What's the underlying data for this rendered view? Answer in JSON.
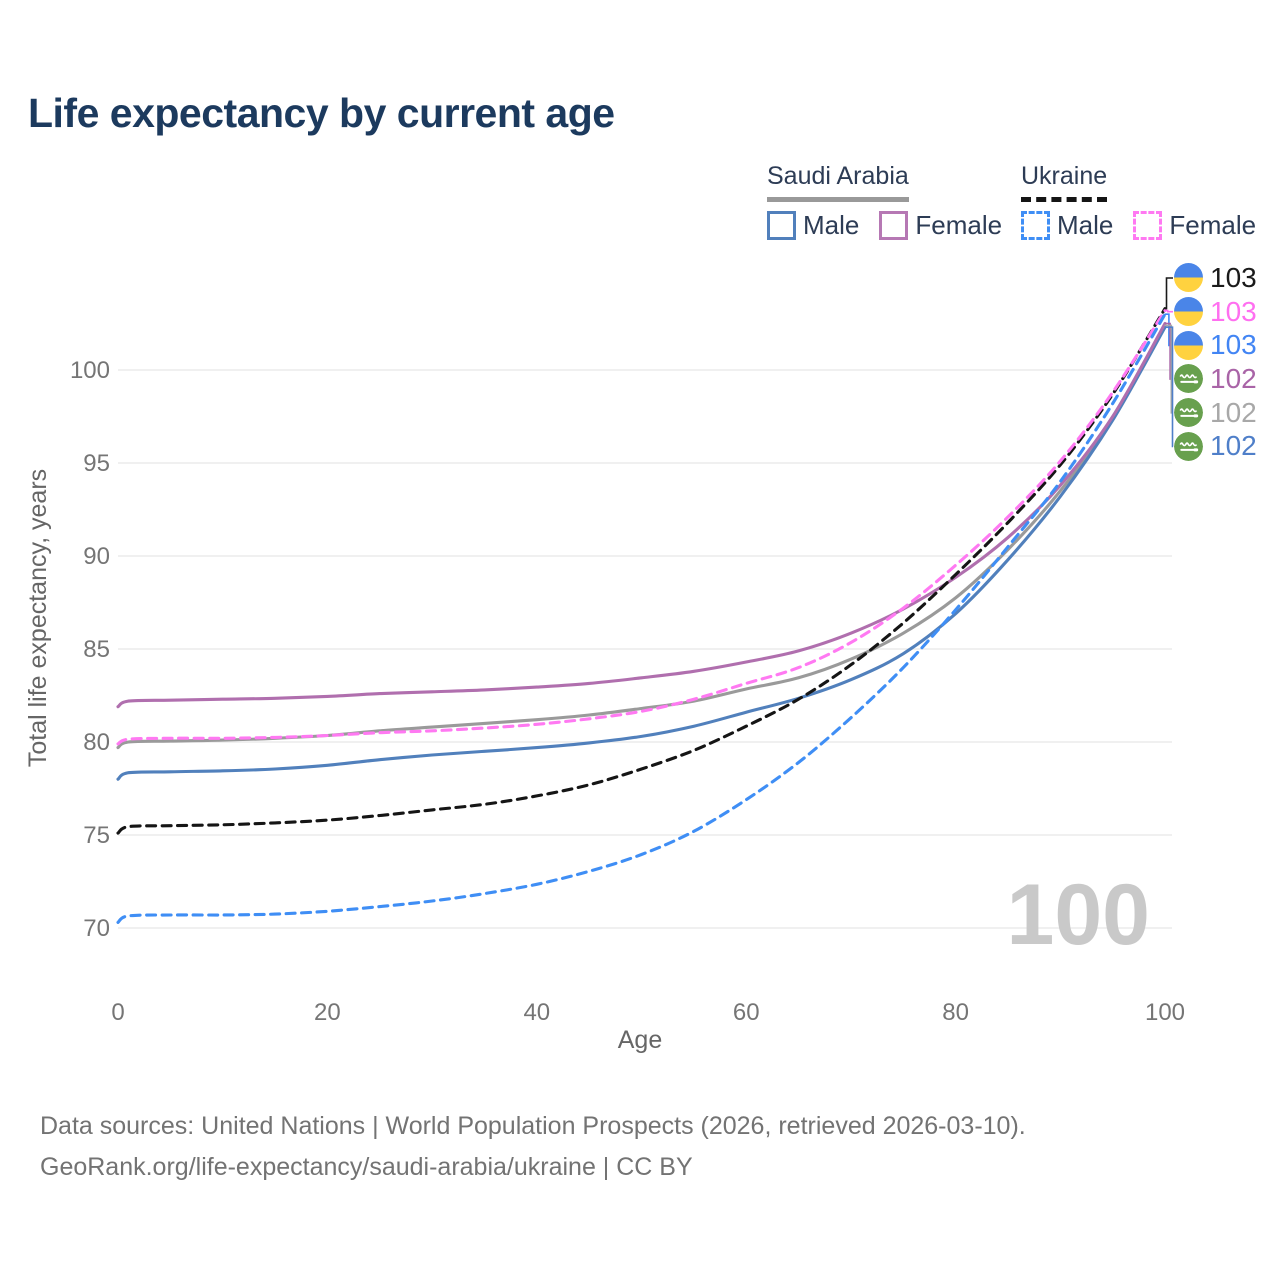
{
  "title": "Life expectancy by current age",
  "legend": {
    "groups": [
      {
        "label": "Saudi Arabia",
        "line_style": "solid",
        "line_color": "#999999",
        "items": [
          {
            "label": "Male",
            "color": "#5180bc",
            "style": "solid"
          },
          {
            "label": "Female",
            "color": "#b678b4",
            "style": "solid"
          }
        ]
      },
      {
        "label": "Ukraine",
        "line_style": "dashed",
        "line_color": "#151515",
        "items": [
          {
            "label": "Male",
            "color": "#3f8ef5",
            "style": "dashed"
          },
          {
            "label": "Female",
            "color": "#ff79f2",
            "style": "dashed"
          }
        ]
      }
    ]
  },
  "chart_data": {
    "type": "line",
    "title": "Life expectancy by current age",
    "xlabel": "Age",
    "ylabel": "Total life expectancy, years",
    "xlim": [
      0,
      100
    ],
    "xticks": [
      0,
      20,
      40,
      60,
      80,
      100
    ],
    "yticks": [
      70,
      75,
      80,
      85,
      90,
      95,
      100
    ],
    "grid": "horizontal",
    "legend_position": "top-right",
    "watermark": "100",
    "x": [
      0,
      1,
      5,
      10,
      15,
      20,
      25,
      30,
      35,
      40,
      45,
      50,
      55,
      60,
      65,
      70,
      75,
      80,
      85,
      90,
      95,
      100
    ],
    "series": [
      {
        "name": "Saudi Arabia Total",
        "country": "Saudi Arabia",
        "sex": "Total",
        "color": "#9a9a9a",
        "dash": "solid",
        "values": [
          79.7,
          80.0,
          80.05,
          80.1,
          80.2,
          80.35,
          80.6,
          80.8,
          81.0,
          81.2,
          81.45,
          81.8,
          82.2,
          82.85,
          83.45,
          84.45,
          85.85,
          87.75,
          90.35,
          93.5,
          97.4,
          102.4
        ]
      },
      {
        "name": "Saudi Arabia Male",
        "country": "Saudi Arabia",
        "sex": "Male",
        "color": "#5180bc",
        "dash": "solid",
        "values": [
          78.0,
          78.35,
          78.4,
          78.45,
          78.55,
          78.75,
          79.05,
          79.3,
          79.5,
          79.7,
          79.95,
          80.3,
          80.85,
          81.6,
          82.35,
          83.35,
          84.75,
          86.9,
          89.8,
          93.2,
          97.3,
          102.3
        ]
      },
      {
        "name": "Saudi Arabia Female",
        "country": "Saudi Arabia",
        "sex": "Female",
        "color": "#b06fae",
        "dash": "solid",
        "values": [
          81.9,
          82.2,
          82.25,
          82.3,
          82.35,
          82.45,
          82.6,
          82.7,
          82.8,
          82.95,
          83.15,
          83.45,
          83.8,
          84.3,
          84.9,
          85.85,
          87.15,
          88.85,
          91.0,
          93.8,
          97.5,
          102.5
        ]
      },
      {
        "name": "Ukraine Total",
        "country": "Ukraine",
        "sex": "Total",
        "color": "#151515",
        "dash": "dashed",
        "values": [
          75.1,
          75.45,
          75.5,
          75.55,
          75.65,
          75.8,
          76.05,
          76.35,
          76.65,
          77.1,
          77.7,
          78.55,
          79.55,
          80.85,
          82.3,
          84.15,
          86.4,
          89.0,
          91.8,
          94.9,
          98.7,
          103.3
        ]
      },
      {
        "name": "Ukraine Female",
        "country": "Ukraine",
        "sex": "Female",
        "color": "#ff79f2",
        "dash": "dashed",
        "values": [
          79.9,
          80.15,
          80.2,
          80.2,
          80.25,
          80.35,
          80.5,
          80.6,
          80.75,
          80.95,
          81.25,
          81.65,
          82.3,
          83.15,
          84.0,
          85.35,
          87.2,
          89.5,
          92.1,
          95.1,
          98.8,
          103.2
        ]
      },
      {
        "name": "Ukraine Male",
        "country": "Ukraine",
        "sex": "Male",
        "color": "#3f8ef5",
        "dash": "dashed",
        "values": [
          70.3,
          70.65,
          70.7,
          70.7,
          70.75,
          70.9,
          71.15,
          71.45,
          71.85,
          72.35,
          73.05,
          73.95,
          75.2,
          76.9,
          78.9,
          81.3,
          84.0,
          87.1,
          90.5,
          94.0,
          98.2,
          103.0
        ]
      }
    ],
    "end_labels": [
      {
        "series": "Ukraine Total",
        "flag": "ukraine",
        "value": "103",
        "color": "#1a1a1a"
      },
      {
        "series": "Ukraine Female",
        "flag": "ukraine",
        "value": "103",
        "color": "#ff6ff0"
      },
      {
        "series": "Ukraine Male",
        "flag": "ukraine",
        "value": "103",
        "color": "#4285f4"
      },
      {
        "series": "Saudi Arabia Female",
        "flag": "saudi-arabia",
        "value": "102",
        "color": "#a964a7"
      },
      {
        "series": "Saudi Arabia Total",
        "flag": "saudi-arabia",
        "value": "102",
        "color": "#a8a8a8"
      },
      {
        "series": "Saudi Arabia Male",
        "flag": "saudi-arabia",
        "value": "102",
        "color": "#4f7fc9"
      }
    ]
  },
  "footer": {
    "line1": "Data sources: United Nations | World Population Prospects (2026, retrieved 2026-03-10).",
    "line2": "GeoRank.org/life-expectancy/saudi-arabia/ukraine | CC BY"
  }
}
